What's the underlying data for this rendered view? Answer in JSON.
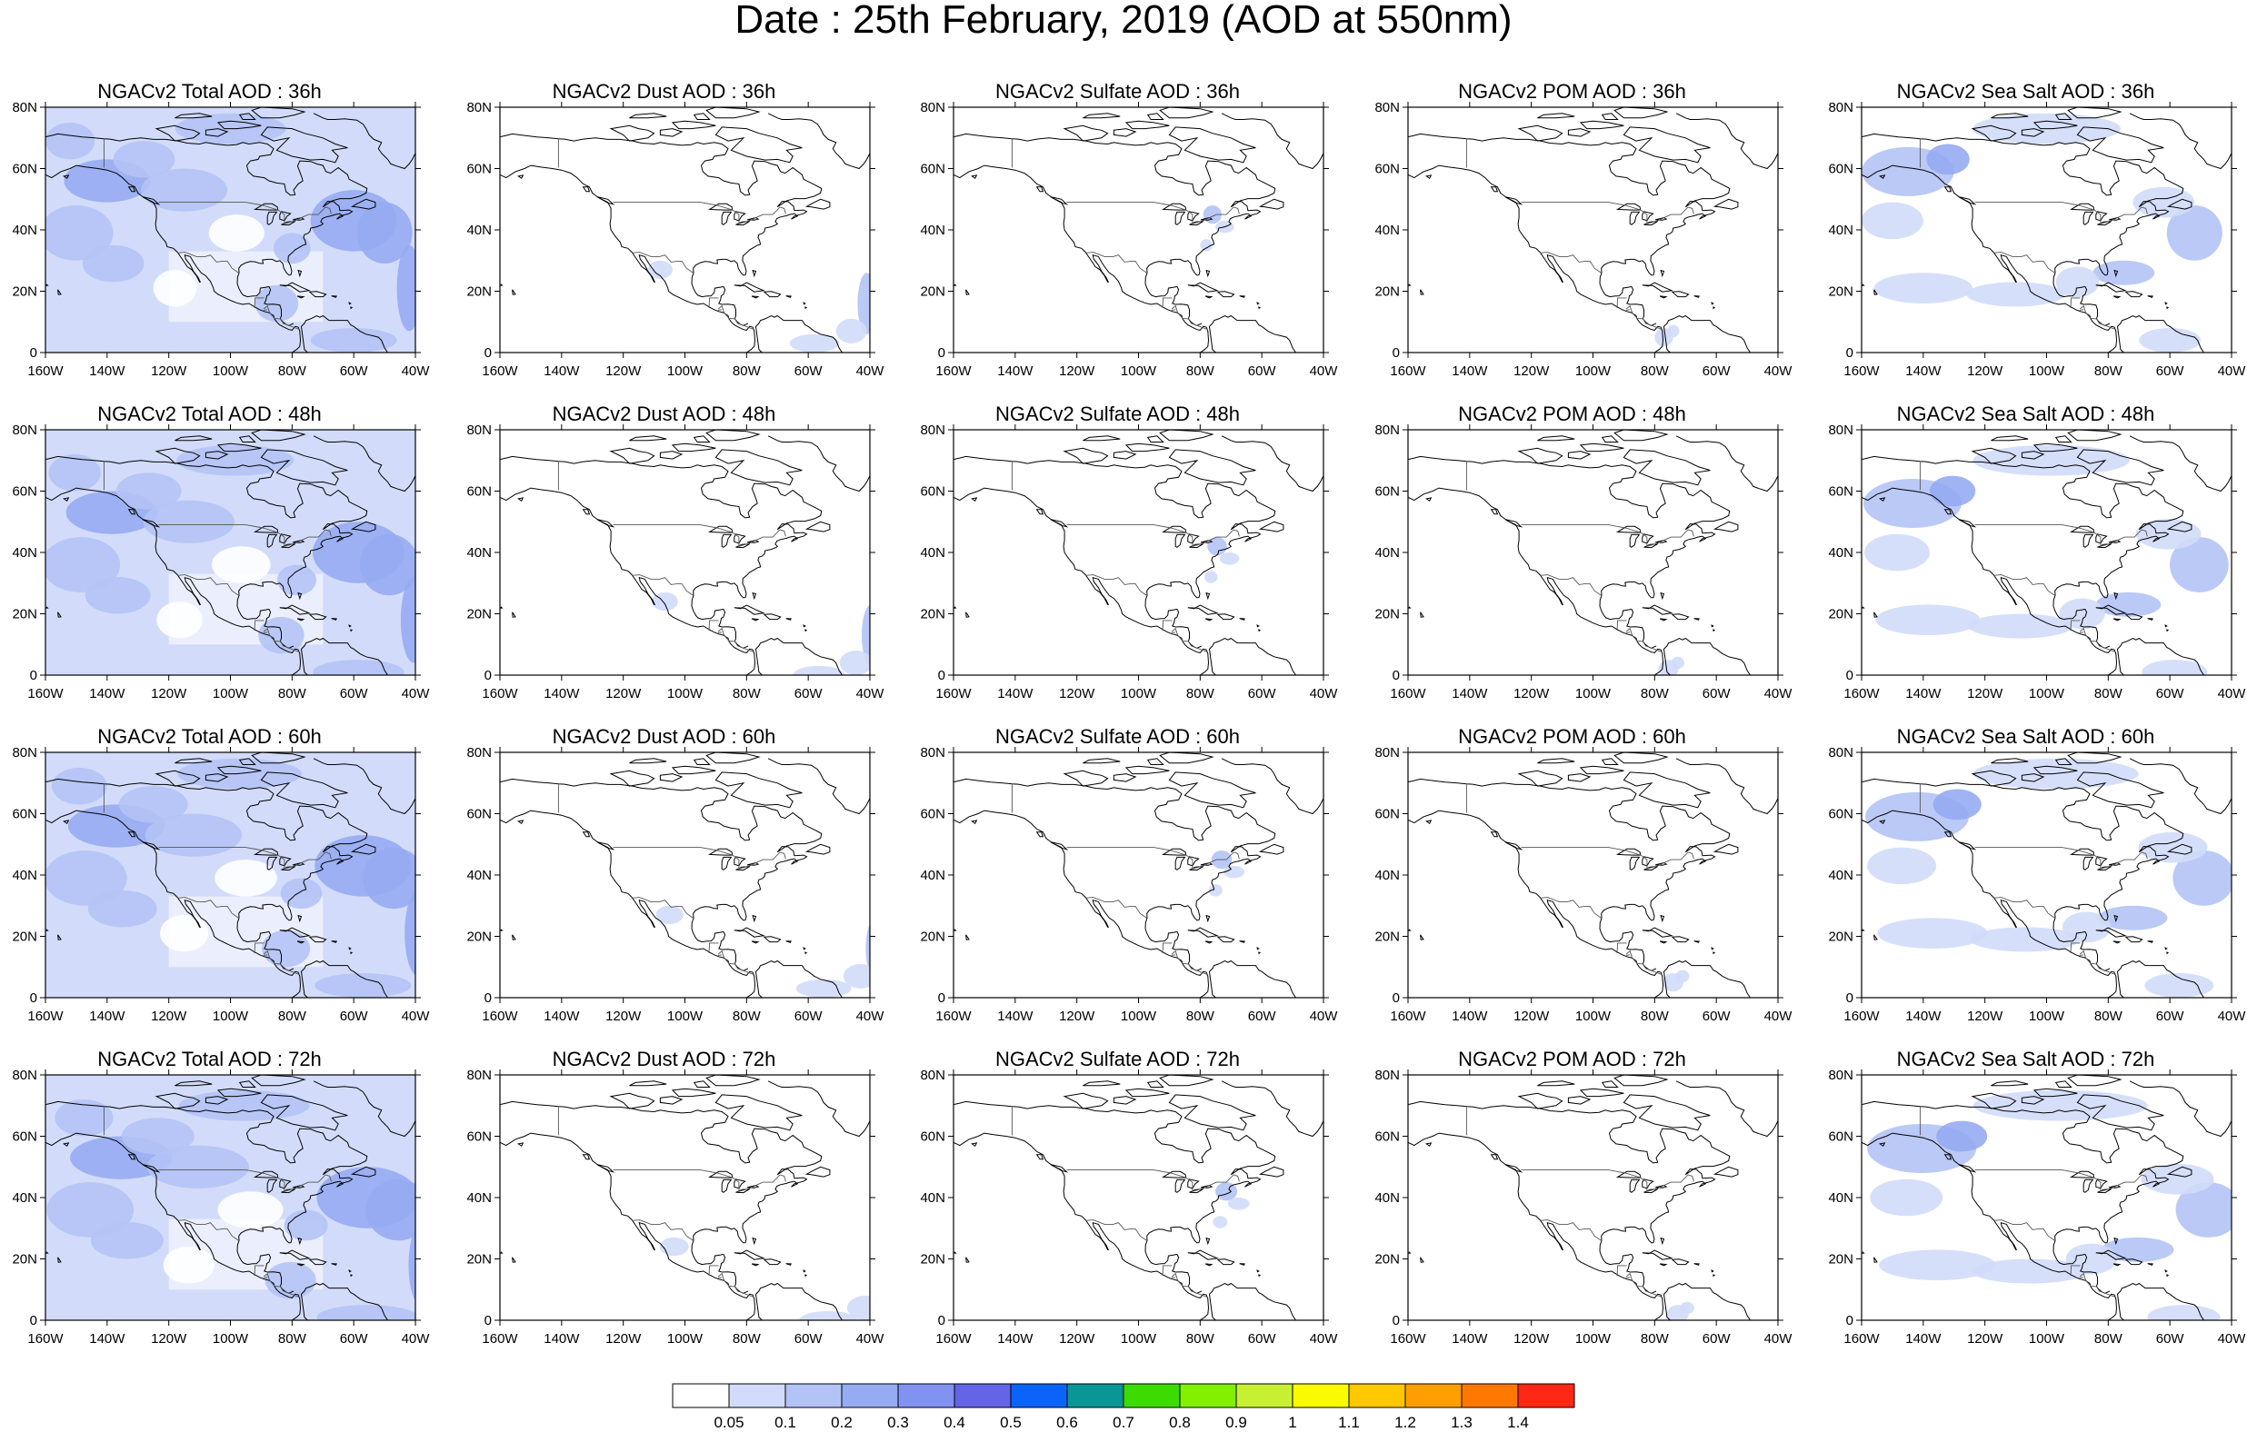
{
  "title": "Date : 25th February, 2019 (AOD at 550nm)",
  "axes": {
    "lat_ticks": [
      "80N",
      "60N",
      "40N",
      "20N",
      "0"
    ],
    "lon_ticks": [
      "160W",
      "140W",
      "120W",
      "100W",
      "80W",
      "60W",
      "40W"
    ],
    "lon_range": [
      -160,
      -40
    ],
    "lat_range": [
      0,
      80
    ]
  },
  "rows": [
    [
      "NGACv2 Total AOD : 36h",
      "NGACv2 Dust AOD : 36h",
      "NGACv2 Sulfate AOD : 36h",
      "NGACv2 POM AOD : 36h",
      "NGACv2 Sea Salt AOD : 36h"
    ],
    [
      "NGACv2 Total AOD : 48h",
      "NGACv2 Dust AOD : 48h",
      "NGACv2 Sulfate AOD : 48h",
      "NGACv2 POM AOD : 48h",
      "NGACv2 Sea Salt AOD : 48h"
    ],
    [
      "NGACv2 Total AOD : 60h",
      "NGACv2 Dust AOD : 60h",
      "NGACv2 Sulfate AOD : 60h",
      "NGACv2 POM AOD : 60h",
      "NGACv2 Sea Salt AOD : 60h"
    ],
    [
      "NGACv2 Total AOD : 72h",
      "NGACv2 Dust AOD : 72h",
      "NGACv2 Sulfate AOD : 72h",
      "NGACv2 POM AOD : 72h",
      "NGACv2 Sea Salt  AOD : 72h"
    ]
  ],
  "colorbar": {
    "labels": [
      "0.05",
      "0.1",
      "0.2",
      "0.3",
      "0.4",
      "0.5",
      "0.6",
      "0.7",
      "0.8",
      "0.9",
      "1",
      "1.1",
      "1.2",
      "1.3",
      "1.4"
    ],
    "colors": [
      "#ffffff",
      "#d2dcfa",
      "#b4c3f5",
      "#96abf2",
      "#8292f0",
      "#6464e6",
      "#0a64fa",
      "#0a9696",
      "#3cdc00",
      "#82f000",
      "#c8f032",
      "#fafa00",
      "#ffc800",
      "#ffa000",
      "#ff7800",
      "#ff2814"
    ]
  }
}
